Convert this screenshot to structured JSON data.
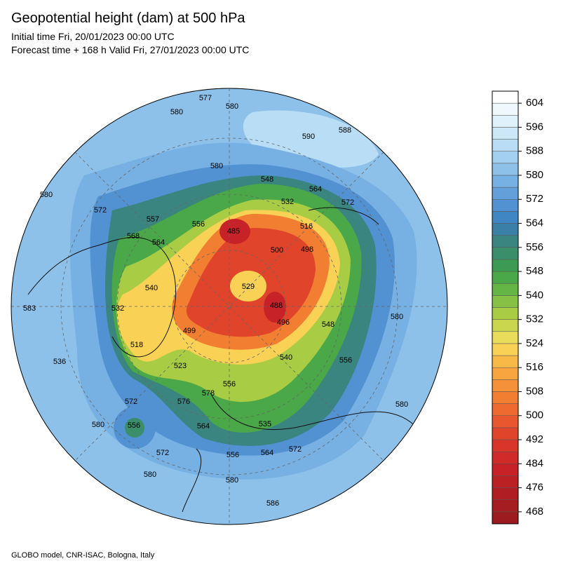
{
  "title": "Geopotential height (dam) at 500 hPa",
  "subtitle": [
    "Initial time Fri, 20/01/2023 00:00 UTC",
    "Forecast time + 168 h Valid Fri, 27/01/2023 00:00 UTC"
  ],
  "footer": "GLOBO model, CNR-ISAC, Bologna, Italy",
  "colorbar": {
    "labels": [
      604,
      596,
      588,
      580,
      572,
      564,
      556,
      548,
      540,
      532,
      524,
      516,
      508,
      500,
      492,
      484,
      476,
      468
    ],
    "range": [
      464,
      608
    ],
    "colors": [
      "#9b1b1e",
      "#a51d20",
      "#b01e22",
      "#bb2025",
      "#c62228",
      "#d02a2a",
      "#d9352b",
      "#e0452c",
      "#e8572d",
      "#ee6a2e",
      "#f27e32",
      "#f59138",
      "#f7a53e",
      "#f8b947",
      "#f9d154",
      "#e8dc5a",
      "#c9d64e",
      "#a9cc45",
      "#86c044",
      "#65b446",
      "#4aa848",
      "#3d9a55",
      "#3a8e6a",
      "#3a8580",
      "#3a7fa6",
      "#4086c4",
      "#5292d2",
      "#63a0da",
      "#77b0e2",
      "#8dc1ea",
      "#a3d0f0",
      "#b8ddf4",
      "#cce8f8",
      "#dff1fb",
      "#eef8fd",
      "#ffffff"
    ]
  },
  "contour_labels": [
    "577",
    "580",
    "580",
    "590",
    "588",
    "580",
    "548",
    "564",
    "572",
    "532",
    "580",
    "572",
    "557",
    "556",
    "485",
    "516",
    "500",
    "498",
    "568",
    "564",
    "540",
    "529",
    "488",
    "496",
    "583",
    "532",
    "499",
    "548",
    "580",
    "518",
    "523",
    "556",
    "536",
    "540",
    "578",
    "576",
    "572",
    "580",
    "556",
    "564",
    "535",
    "572",
    "572",
    "556",
    "564",
    "580",
    "580",
    "586",
    "580",
    "556"
  ]
}
